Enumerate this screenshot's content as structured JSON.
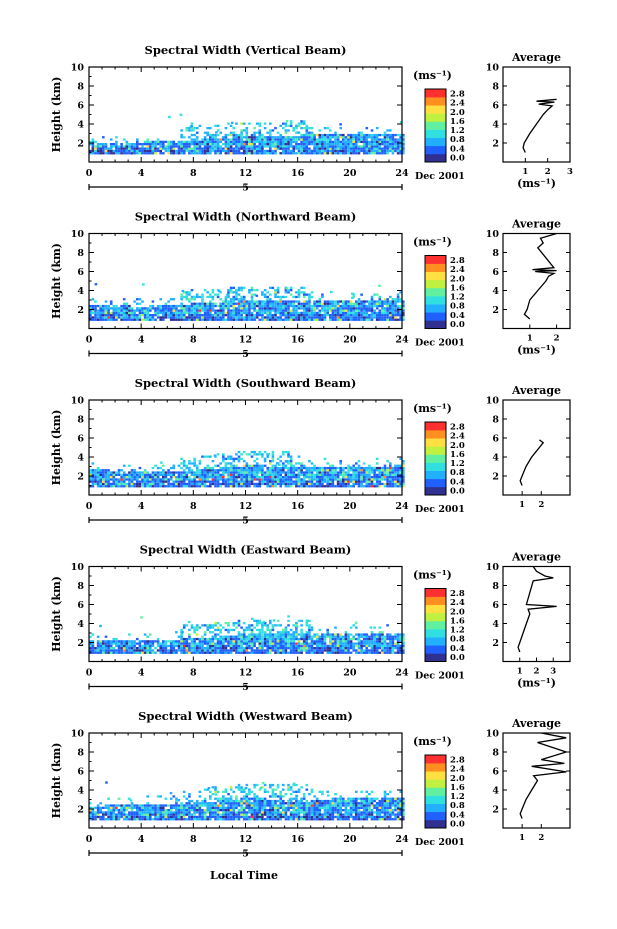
{
  "figure": {
    "xlabel": "Local Time",
    "date_label": "Dec 2001",
    "day_label": "5",
    "colorbar_unit": "(ms⁻¹)",
    "colorbar_ticks": [
      "0.0",
      "0.4",
      "0.8",
      "1.2",
      "1.6",
      "2.0",
      "2.4",
      "2.8"
    ],
    "colorbar_colors": [
      "#303090",
      "#2060ff",
      "#20b0ff",
      "#30e0e0",
      "#60f0a0",
      "#c0f040",
      "#ffe040",
      "#ff9020",
      "#ff3030"
    ],
    "avg_title": "Average",
    "avg_xlabel": "(ms⁻¹)",
    "ylabel": "Height (km)"
  },
  "chart_data": [
    {
      "type": "heatmap",
      "title": "Spectral Width (Vertical Beam)",
      "xlabel": "",
      "ylabel": "Height (km)",
      "xlim": [
        0,
        24
      ],
      "ylim": [
        0,
        10
      ],
      "xticks": [
        0,
        4,
        8,
        12,
        16,
        20,
        24
      ],
      "yticks": [
        2,
        4,
        6,
        8,
        10
      ],
      "colorbar": {
        "label": "(ms⁻¹)",
        "range": [
          0,
          2.8
        ]
      },
      "echo_layer": [
        [
          0,
          1.8
        ],
        [
          4,
          2.0
        ],
        [
          8,
          2.2
        ],
        [
          12,
          2.6
        ],
        [
          16,
          2.7
        ],
        [
          20,
          2.8
        ],
        [
          24,
          2.8
        ]
      ],
      "average_profile": {
        "title": "Average",
        "xlabel": "(ms⁻¹)",
        "xlim": [
          0,
          3
        ],
        "xticks": [
          1,
          2,
          3
        ],
        "x": [
          1.0,
          0.9,
          0.95,
          1.2,
          1.5,
          1.8,
          2.0,
          2.2,
          1.6,
          2.3,
          1.5,
          2.4
        ],
        "y": [
          1.0,
          1.5,
          2.0,
          3.0,
          4.0,
          5.0,
          5.5,
          5.9,
          6.1,
          6.3,
          6.4,
          6.6
        ]
      }
    },
    {
      "type": "heatmap",
      "title": "Spectral Width (Northward Beam)",
      "xlabel": "",
      "ylabel": "Height (km)",
      "xlim": [
        0,
        24
      ],
      "ylim": [
        0,
        10
      ],
      "xticks": [
        0,
        4,
        8,
        12,
        16,
        20,
        24
      ],
      "yticks": [
        2,
        4,
        6,
        8,
        10
      ],
      "colorbar": {
        "label": "(ms⁻¹)",
        "range": [
          0,
          2.8
        ]
      },
      "echo_layer": [
        [
          0,
          2.4
        ],
        [
          4,
          2.2
        ],
        [
          8,
          2.5
        ],
        [
          12,
          2.9
        ],
        [
          16,
          2.8
        ],
        [
          20,
          2.9
        ],
        [
          24,
          3.0
        ]
      ],
      "average_profile": {
        "title": "Average",
        "xlabel": "(ms⁻¹)",
        "xlim": [
          0,
          2.5
        ],
        "xticks": [
          1,
          2
        ],
        "x": [
          1.0,
          0.8,
          0.9,
          1.0,
          1.3,
          1.6,
          1.7,
          1.9,
          1.2,
          2.0,
          1.1,
          1.9,
          1.3,
          1.5,
          1.4,
          2.0
        ],
        "y": [
          1.0,
          1.5,
          2.0,
          3.0,
          4.0,
          5.0,
          5.5,
          5.8,
          6.0,
          6.1,
          6.2,
          6.4,
          8.5,
          9.0,
          9.5,
          10.0
        ]
      }
    },
    {
      "type": "heatmap",
      "title": "Spectral Width (Southward Beam)",
      "xlabel": "",
      "ylabel": "Height (km)",
      "xlim": [
        0,
        24
      ],
      "ylim": [
        0,
        10
      ],
      "xticks": [
        0,
        4,
        8,
        12,
        16,
        20,
        24
      ],
      "yticks": [
        2,
        4,
        6,
        8,
        10
      ],
      "colorbar": {
        "label": "(ms⁻¹)",
        "range": [
          0,
          2.8
        ]
      },
      "echo_layer": [
        [
          0,
          2.6
        ],
        [
          4,
          2.3
        ],
        [
          8,
          2.4
        ],
        [
          12,
          3.0
        ],
        [
          16,
          2.9
        ],
        [
          20,
          2.9
        ],
        [
          24,
          3.0
        ]
      ],
      "average_profile": {
        "title": "Average",
        "xlabel": "",
        "xlim": [
          0,
          3.5
        ],
        "xticks": [
          1,
          2
        ],
        "x": [
          1.0,
          0.9,
          1.0,
          1.2,
          1.5,
          1.7,
          1.9,
          2.1,
          1.9
        ],
        "y": [
          1.0,
          1.5,
          2.0,
          3.0,
          4.0,
          4.5,
          5.0,
          5.5,
          5.8
        ]
      }
    },
    {
      "type": "heatmap",
      "title": "Spectral Width (Eastward Beam)",
      "xlabel": "",
      "ylabel": "Height (km)",
      "xlim": [
        0,
        24
      ],
      "ylim": [
        0,
        10
      ],
      "xticks": [
        0,
        4,
        8,
        12,
        16,
        20,
        24
      ],
      "yticks": [
        2,
        4,
        6,
        8,
        10
      ],
      "colorbar": {
        "label": "(ms⁻¹)",
        "range": [
          0,
          2.8
        ]
      },
      "echo_layer": [
        [
          0,
          2.0
        ],
        [
          4,
          2.1
        ],
        [
          8,
          2.3
        ],
        [
          12,
          2.8
        ],
        [
          16,
          2.8
        ],
        [
          20,
          2.9
        ],
        [
          24,
          2.9
        ]
      ],
      "average_profile": {
        "title": "Average",
        "xlabel": "(ms⁻¹)",
        "xlim": [
          0,
          4
        ],
        "xticks": [
          1,
          2,
          3
        ],
        "x": [
          1.0,
          0.9,
          1.0,
          1.2,
          1.4,
          1.6,
          1.5,
          3.2,
          1.4,
          1.8,
          3.0,
          2.5,
          2.0,
          1.8
        ],
        "y": [
          1.0,
          1.5,
          2.0,
          3.0,
          4.0,
          5.0,
          5.5,
          5.8,
          6.0,
          8.5,
          8.8,
          9.0,
          9.5,
          10.0
        ]
      }
    },
    {
      "type": "heatmap",
      "title": "Spectral Width (Westward Beam)",
      "xlabel": "Local Time",
      "ylabel": "Height (km)",
      "xlim": [
        0,
        24
      ],
      "ylim": [
        0,
        10
      ],
      "xticks": [
        0,
        4,
        8,
        12,
        16,
        20,
        24
      ],
      "yticks": [
        2,
        4,
        6,
        8,
        10
      ],
      "colorbar": {
        "label": "(ms⁻¹)",
        "range": [
          0,
          2.8
        ]
      },
      "echo_layer": [
        [
          0,
          2.2
        ],
        [
          4,
          2.4
        ],
        [
          8,
          2.5
        ],
        [
          12,
          3.0
        ],
        [
          16,
          2.9
        ],
        [
          20,
          3.0
        ],
        [
          24,
          3.0
        ]
      ],
      "average_profile": {
        "title": "Average",
        "xlabel": "",
        "xlim": [
          0,
          3.5
        ],
        "xticks": [
          1,
          2
        ],
        "x": [
          1.0,
          0.9,
          1.0,
          1.2,
          1.5,
          1.8,
          1.6,
          3.3,
          1.5,
          3.2,
          2.0,
          3.3,
          1.8,
          3.3,
          2.0
        ],
        "y": [
          1.0,
          1.5,
          2.0,
          3.0,
          4.0,
          5.0,
          5.5,
          5.9,
          6.5,
          6.8,
          7.2,
          8.0,
          9.0,
          9.5,
          10.0
        ]
      }
    }
  ]
}
